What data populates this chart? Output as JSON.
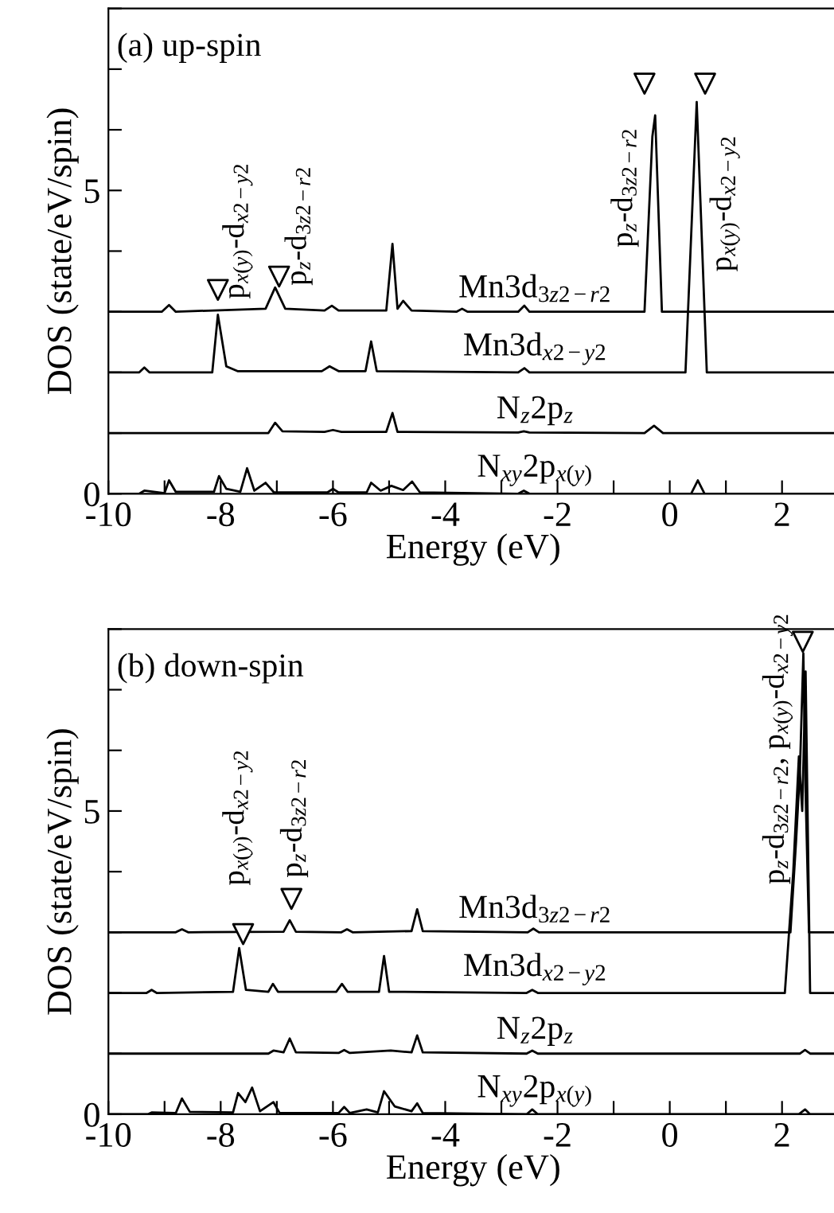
{
  "chart_data": [
    {
      "type": "line",
      "title": "(a) up-spin",
      "xlabel": "Energy (eV)",
      "ylabel": "DOS (state/eV/spin)",
      "xlim": [
        -10,
        3
      ],
      "ylim": [
        0,
        8
      ],
      "xticks": [
        -10,
        {
          "value": -9,
          "label": null
        },
        -8,
        {
          "value": -7,
          "label": null
        },
        -6,
        {
          "value": -5,
          "label": null
        },
        -4,
        {
          "value": -3,
          "label": null
        },
        -2,
        {
          "value": -1,
          "label": null
        },
        0,
        {
          "value": 1,
          "label": null
        },
        2
      ],
      "yticks": [
        0,
        {
          "value": 1,
          "label": null
        },
        {
          "value": 2,
          "label": null
        },
        {
          "value": 3,
          "label": null
        },
        {
          "value": 4,
          "label": null
        },
        5,
        {
          "value": 6,
          "label": null
        },
        {
          "value": 7,
          "label": null
        },
        {
          "value": 8,
          "label": null
        }
      ],
      "grid": false,
      "legend": false,
      "line_style": "solid",
      "series": [
        {
          "name": "Mn3d$_{3z2−r2}$",
          "color": "#000000",
          "x": [
            -10,
            -9.05,
            -8.92,
            -8.8,
            -7.2,
            -7.03,
            -6.85,
            -6.15,
            -6.02,
            -5.9,
            -5.05,
            -4.94,
            -4.85,
            -4.75,
            -4.6,
            -3.8,
            -3.7,
            -3.6,
            -2.7,
            -2.59,
            -2.5,
            -0.45,
            -0.31,
            -0.26,
            -0.14,
            3
          ],
          "values": [
            3,
            3,
            3.11,
            3,
            3.05,
            3.4,
            3.05,
            3.02,
            3.1,
            3.02,
            3.02,
            4.12,
            3.05,
            3.18,
            3.02,
            3,
            3.05,
            3,
            3,
            3.1,
            3,
            3,
            5.89,
            6.24,
            3,
            3
          ]
        },
        {
          "name": "Mn3d$_{x2−y2}$",
          "color": "#000000",
          "x": [
            -10,
            -9.45,
            -9.36,
            -9.27,
            -8.15,
            -8.05,
            -7.9,
            -7.7,
            -6.2,
            -6.06,
            -5.9,
            -5.42,
            -5.32,
            -5.22,
            -2.7,
            -2.59,
            -2.5,
            0.28,
            0.48,
            0.66,
            3
          ],
          "values": [
            2,
            2,
            2.08,
            2,
            2,
            2.95,
            2.1,
            2.02,
            2.02,
            2.1,
            2.02,
            2.02,
            2.51,
            2.02,
            2,
            2.07,
            2,
            2,
            6.46,
            2,
            2
          ]
        },
        {
          "name": "N$_{z}$2p$_{z}$",
          "color": "#000000",
          "x": [
            -10,
            -7.15,
            -7.03,
            -6.9,
            -6.15,
            -6.0,
            -5.85,
            -5.05,
            -4.94,
            -4.85,
            -2.7,
            -2.6,
            -2.5,
            -0.45,
            -0.28,
            -0.12,
            3
          ],
          "values": [
            1,
            1,
            1.17,
            1.03,
            1.02,
            1.05,
            1.02,
            1.02,
            1.33,
            1.02,
            1.01,
            1.03,
            1.01,
            1,
            1.12,
            1,
            1
          ]
        },
        {
          "name": "N$_{xy}$2p$_{x(y)}$",
          "color": "#000000",
          "x": [
            -10,
            -9.45,
            -9.36,
            -9.0,
            -8.92,
            -8.8,
            -8.12,
            -8.03,
            -7.9,
            -7.65,
            -7.53,
            -7.4,
            -7.2,
            -7.05,
            -6.1,
            -6.0,
            -5.9,
            -5.4,
            -5.32,
            -5.15,
            -4.96,
            -4.75,
            -4.59,
            -4.45,
            -2.7,
            -2.6,
            -2.5,
            0.38,
            0.5,
            0.62,
            3
          ],
          "values": [
            0,
            0,
            0.05,
            0.01,
            0.22,
            0.03,
            0.03,
            0.29,
            0.08,
            0.03,
            0.42,
            0.05,
            0.18,
            0.02,
            0.02,
            0.08,
            0.02,
            0.02,
            0.18,
            0.05,
            0.13,
            0.06,
            0.2,
            0.02,
            0,
            0.05,
            0,
            0,
            0.22,
            0,
            0
          ]
        },
        {
          "type": "scatter",
          "marker": "triangle",
          "color": "#000000",
          "x": [
            -8.05,
            -6.96,
            -0.45,
            0.63
          ],
          "values": [
            3.36,
            3.58,
            6.76,
            6.76
          ]
        }
      ],
      "annotations": [
        {
          "text": "p$_{x(y)}$-d$_{x2−y2}$",
          "x": -8.05,
          "y": 3.36
        },
        {
          "text": "p$_{z}$-d$_{3z2−r2}$",
          "x": -6.96,
          "y": 3.58
        },
        {
          "text": "p$_{z}$-d$_{3z2−r2}$",
          "x": -0.45,
          "y": 6.76
        },
        {
          "text": "p$_{x(y)}$-d$_{x2−y2}$",
          "x": 0.63,
          "y": 6.76
        }
      ]
    },
    {
      "type": "line",
      "title": "(b) down-spin",
      "xlabel": "Energy (eV)",
      "ylabel": "DOS (state/eV/spin)",
      "xlim": [
        -10,
        3
      ],
      "ylim": [
        0,
        8
      ],
      "xticks": [
        -10,
        {
          "value": -9,
          "label": null
        },
        -8,
        {
          "value": -7,
          "label": null
        },
        -6,
        {
          "value": -5,
          "label": null
        },
        -4,
        {
          "value": -3,
          "label": null
        },
        -2,
        {
          "value": -1,
          "label": null
        },
        0,
        {
          "value": 1,
          "label": null
        },
        2
      ],
      "yticks": [
        0,
        {
          "value": 1,
          "label": null
        },
        {
          "value": 2,
          "label": null
        },
        {
          "value": 3,
          "label": null
        },
        {
          "value": 4,
          "label": null
        },
        5,
        {
          "value": 6,
          "label": null
        },
        {
          "value": 7,
          "label": null
        },
        {
          "value": 8,
          "label": null
        }
      ],
      "grid": false,
      "legend": false,
      "line_style": "solid",
      "series": [
        {
          "name": "Mn3d$_{3z2−r2}$",
          "color": "#000000",
          "x": [
            -10,
            -8.8,
            -8.69,
            -8.58,
            -6.88,
            -6.77,
            -6.66,
            -5.85,
            -5.75,
            -5.65,
            -4.6,
            -4.5,
            -4.4,
            -2.53,
            -2.43,
            -2.33,
            2.15,
            2.25,
            2.32,
            2.38,
            2.42,
            2.48,
            3
          ],
          "values": [
            3,
            3,
            3.05,
            3,
            3.01,
            3.2,
            3.01,
            3,
            3.05,
            3,
            3.02,
            3.38,
            3.02,
            3,
            3.06,
            3,
            3,
            4.5,
            5.7,
            7.6,
            5.3,
            3,
            3
          ]
        },
        {
          "name": "Mn3d$_{x2−y2}$",
          "color": "#000000",
          "x": [
            -10,
            -9.32,
            -9.23,
            -9.14,
            -7.78,
            -7.67,
            -7.55,
            -7.15,
            -7.07,
            -6.98,
            -5.94,
            -5.84,
            -5.74,
            -5.18,
            -5.09,
            -5.0,
            -2.55,
            -2.45,
            -2.35,
            2.05,
            2.2,
            2.3,
            2.36,
            2.42,
            2.5,
            3
          ],
          "values": [
            2,
            2,
            2.05,
            2,
            2.02,
            2.74,
            2.05,
            2.02,
            2.15,
            2.02,
            2.02,
            2.15,
            2.02,
            2.02,
            2.61,
            2.02,
            2,
            2.05,
            2,
            2,
            4.0,
            5.9,
            5.0,
            7.3,
            2,
            2
          ]
        },
        {
          "name": "N$_{z}$2p$_{z}$",
          "color": "#000000",
          "x": [
            -10,
            -7.15,
            -7.06,
            -6.88,
            -6.77,
            -6.66,
            -5.9,
            -5.8,
            -5.7,
            -4.97,
            -4.6,
            -4.5,
            -4.4,
            -2.55,
            -2.45,
            -2.35,
            2.32,
            2.41,
            2.5,
            3
          ],
          "values": [
            1,
            1,
            1.05,
            1.02,
            1.25,
            1.02,
            1.01,
            1.06,
            1.01,
            1.05,
            1.02,
            1.3,
            1.02,
            1,
            1.05,
            1,
            1,
            1.06,
            1,
            1
          ]
        },
        {
          "name": "N$_{xy}$2p$_{x(y)}$",
          "color": "#000000",
          "x": [
            -10,
            -9.3,
            -9.23,
            -8.8,
            -8.69,
            -8.55,
            -7.78,
            -7.69,
            -7.56,
            -7.44,
            -7.3,
            -7.06,
            -6.95,
            -5.9,
            -5.8,
            -5.7,
            -5.4,
            -5.2,
            -5.09,
            -4.9,
            -4.6,
            -4.5,
            -4.4,
            -2.55,
            -2.45,
            -2.35,
            2.3,
            2.41,
            2.5,
            3
          ],
          "values": [
            0,
            0,
            0.03,
            0.02,
            0.26,
            0.04,
            0.03,
            0.35,
            0.2,
            0.44,
            0.05,
            0.2,
            0.02,
            0.02,
            0.12,
            0.02,
            0.08,
            0.03,
            0.38,
            0.13,
            0.05,
            0.18,
            0.02,
            0,
            0.08,
            0,
            0,
            0.08,
            0,
            0
          ]
        },
        {
          "type": "scatter",
          "marker": "triangle",
          "color": "#000000",
          "x": [
            -7.6,
            -6.74,
            2.37
          ],
          "values": [
            2.97,
            3.55,
            7.79
          ]
        }
      ],
      "annotations": [
        {
          "text": "p$_{x(y)}$-d$_{x2−y2}$",
          "x": -7.6,
          "y": 2.97
        },
        {
          "text": "p$_{z}$-d$_{3z2−r2}$",
          "x": -6.74,
          "y": 3.55
        },
        {
          "text": "p$_{z}$-d$_{3z2−r2}$, p$_{x(y)}$-d$_{x2−y2}$",
          "x": 2.37,
          "y": 7.79
        }
      ]
    }
  ]
}
